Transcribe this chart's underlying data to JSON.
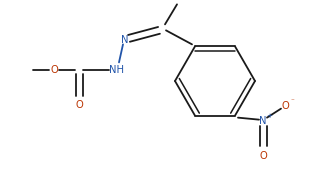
{
  "bond_color": "#1a1a1a",
  "N_color": "#2255aa",
  "O_color": "#bb3300",
  "background": "#ffffff",
  "line_width": 1.3,
  "font_size": 7.2,
  "fig_width": 3.26,
  "fig_height": 1.71,
  "dpi": 100,
  "xlim": [
    0,
    326
  ],
  "ylim": [
    0,
    171
  ]
}
